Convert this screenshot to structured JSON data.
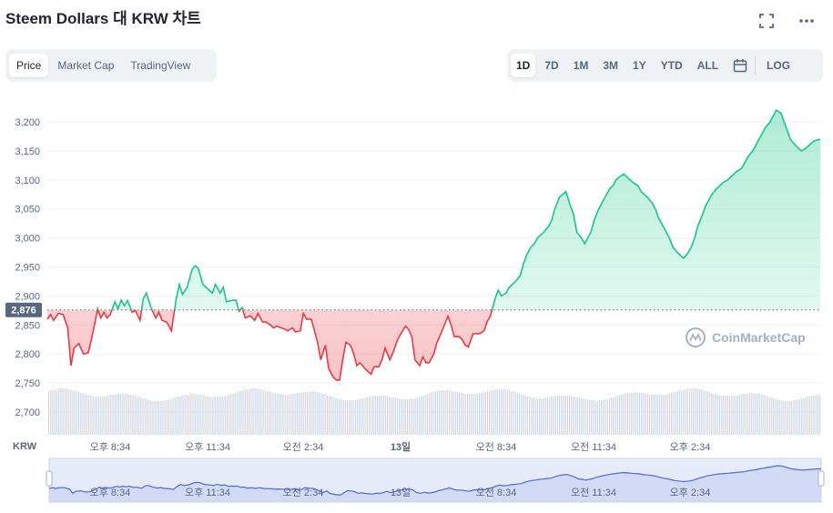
{
  "header": {
    "title": "Steem Dollars 대 KRW 차트",
    "fullscreen_icon": "fullscreen-icon",
    "more_icon": "more-icon"
  },
  "view_tabs": [
    {
      "label": "Price",
      "active": true
    },
    {
      "label": "Market Cap",
      "active": false
    },
    {
      "label": "TradingView",
      "active": false
    }
  ],
  "range_tabs": [
    {
      "label": "1D",
      "active": true
    },
    {
      "label": "7D",
      "active": false
    },
    {
      "label": "1M",
      "active": false
    },
    {
      "label": "3M",
      "active": false
    },
    {
      "label": "1Y",
      "active": false
    },
    {
      "label": "YTD",
      "active": false
    },
    {
      "label": "ALL",
      "active": false
    }
  ],
  "calendar_icon": "calendar-icon",
  "log_label": "LOG",
  "watermark": "CoinMarketCap",
  "colors": {
    "up": "#16c784",
    "down": "#ea3943",
    "nav": "#4a6cd4",
    "grid": "#eff2f5",
    "text": "#58667e"
  },
  "chart_data": {
    "type": "line",
    "currency_label": "KRW",
    "reference_value": 2876,
    "reference_label": "2,876",
    "ylim": [
      2680,
      3230
    ],
    "yticks": [
      2700,
      2750,
      2800,
      2850,
      2900,
      2950,
      3000,
      3050,
      3100,
      3150,
      3200
    ],
    "ytick_labels": [
      "2,700",
      "2,750",
      "2,800",
      "2,850",
      "2,900",
      "2,950",
      "3,000",
      "3,050",
      "3,100",
      "3,150",
      "3,200"
    ],
    "xticks": [
      "오후 8:34",
      "오후 11:34",
      "오전 2:34",
      "13일",
      "오전 8:34",
      "오전 11:34",
      "오후 2:34"
    ],
    "x_hours": [
      0,
      3,
      6,
      9,
      12,
      15,
      18,
      21,
      24
    ],
    "series": [
      {
        "values": [
          [
            0,
            2860
          ],
          [
            0.2,
            2868
          ],
          [
            0.4,
            2858
          ],
          [
            0.7,
            2870
          ],
          [
            1.0,
            2868
          ],
          [
            1.3,
            2845
          ],
          [
            1.5,
            2780
          ],
          [
            1.7,
            2810
          ],
          [
            2.0,
            2818
          ],
          [
            2.3,
            2800
          ],
          [
            2.6,
            2802
          ],
          [
            2.8,
            2825
          ],
          [
            3.0,
            2850
          ],
          [
            3.2,
            2878
          ],
          [
            3.4,
            2862
          ],
          [
            3.6,
            2872
          ],
          [
            3.8,
            2862
          ],
          [
            4.0,
            2868
          ],
          [
            4.3,
            2890
          ],
          [
            4.5,
            2878
          ],
          [
            4.7,
            2893
          ],
          [
            4.9,
            2883
          ],
          [
            5.1,
            2892
          ],
          [
            5.4,
            2872
          ],
          [
            5.6,
            2875
          ],
          [
            5.9,
            2858
          ],
          [
            6.1,
            2895
          ],
          [
            6.3,
            2905
          ],
          [
            6.6,
            2880
          ],
          [
            6.9,
            2862
          ],
          [
            7.1,
            2872
          ],
          [
            7.3,
            2858
          ],
          [
            7.6,
            2855
          ],
          [
            7.9,
            2840
          ],
          [
            8.2,
            2895
          ],
          [
            8.4,
            2920
          ],
          [
            8.6,
            2903
          ],
          [
            8.9,
            2915
          ],
          [
            9.2,
            2945
          ],
          [
            9.4,
            2952
          ],
          [
            9.6,
            2948
          ],
          [
            9.9,
            2920
          ],
          [
            10.1,
            2915
          ],
          [
            10.3,
            2910
          ],
          [
            10.5,
            2905
          ],
          [
            10.7,
            2920
          ],
          [
            11.0,
            2905
          ],
          [
            11.2,
            2915
          ],
          [
            11.4,
            2890
          ],
          [
            11.7,
            2892
          ],
          [
            12.0,
            2893
          ],
          [
            12.2,
            2874
          ],
          [
            12.4,
            2880
          ],
          [
            12.6,
            2862
          ],
          [
            12.9,
            2866
          ],
          [
            13.2,
            2858
          ],
          [
            13.4,
            2870
          ],
          [
            13.7,
            2855
          ],
          [
            13.9,
            2855
          ],
          [
            14.2,
            2850
          ],
          [
            14.4,
            2845
          ],
          [
            14.6,
            2848
          ],
          [
            14.9,
            2845
          ],
          [
            15.1,
            2843
          ],
          [
            15.3,
            2840
          ],
          [
            15.6,
            2845
          ],
          [
            15.8,
            2838
          ],
          [
            16.1,
            2840
          ],
          [
            16.3,
            2870
          ],
          [
            16.5,
            2860
          ],
          [
            16.8,
            2860
          ],
          [
            17.0,
            2840
          ],
          [
            17.2,
            2820
          ],
          [
            17.4,
            2790
          ],
          [
            17.7,
            2815
          ],
          [
            17.9,
            2775
          ],
          [
            18.2,
            2760
          ],
          [
            18.4,
            2755
          ],
          [
            18.6,
            2755
          ],
          [
            18.8,
            2790
          ],
          [
            19.0,
            2820
          ],
          [
            19.3,
            2815
          ],
          [
            19.5,
            2800
          ],
          [
            19.7,
            2780
          ],
          [
            19.9,
            2785
          ],
          [
            20.2,
            2775
          ],
          [
            20.4,
            2770
          ],
          [
            20.6,
            2765
          ],
          [
            20.8,
            2778
          ],
          [
            21.1,
            2778
          ],
          [
            21.3,
            2790
          ],
          [
            21.5,
            2810
          ],
          [
            21.8,
            2790
          ],
          [
            22.0,
            2802
          ],
          [
            22.3,
            2825
          ],
          [
            22.5,
            2835
          ],
          [
            22.8,
            2848
          ],
          [
            23.0,
            2842
          ],
          [
            23.2,
            2830
          ],
          [
            23.4,
            2790
          ],
          [
            23.7,
            2780
          ],
          [
            23.9,
            2795
          ],
          [
            24.1,
            2785
          ],
          [
            24.3,
            2785
          ],
          [
            24.6,
            2800
          ],
          [
            24.8,
            2820
          ],
          [
            25.0,
            2832
          ],
          [
            25.2,
            2845
          ],
          [
            25.5,
            2865
          ],
          [
            25.7,
            2850
          ],
          [
            25.9,
            2830
          ],
          [
            26.2,
            2830
          ],
          [
            26.4,
            2825
          ],
          [
            26.6,
            2815
          ],
          [
            26.8,
            2812
          ],
          [
            27.1,
            2835
          ],
          [
            27.3,
            2835
          ],
          [
            27.5,
            2835
          ],
          [
            27.8,
            2840
          ],
          [
            28.0,
            2856
          ],
          [
            28.2,
            2865
          ],
          [
            28.5,
            2895
          ],
          [
            28.7,
            2910
          ],
          [
            28.9,
            2900
          ],
          [
            29.2,
            2905
          ],
          [
            29.4,
            2915
          ],
          [
            29.6,
            2920
          ],
          [
            29.8,
            2925
          ],
          [
            30.1,
            2935
          ],
          [
            30.3,
            2955
          ],
          [
            30.5,
            2970
          ],
          [
            30.8,
            2985
          ],
          [
            31.0,
            2990
          ],
          [
            31.2,
            3000
          ],
          [
            31.4,
            3005
          ],
          [
            31.6,
            3010
          ],
          [
            31.9,
            3020
          ],
          [
            32.1,
            3030
          ],
          [
            32.3,
            3050
          ],
          [
            32.6,
            3070
          ],
          [
            32.8,
            3075
          ],
          [
            33.0,
            3080
          ],
          [
            33.3,
            3055
          ],
          [
            33.5,
            3040
          ],
          [
            33.7,
            3010
          ],
          [
            34.0,
            3000
          ],
          [
            34.2,
            2990
          ],
          [
            34.4,
            3000
          ],
          [
            34.6,
            3010
          ],
          [
            34.8,
            3030
          ],
          [
            35.1,
            3050
          ],
          [
            35.3,
            3060
          ],
          [
            35.5,
            3070
          ],
          [
            35.8,
            3085
          ],
          [
            36.0,
            3090
          ],
          [
            36.2,
            3100
          ],
          [
            36.4,
            3105
          ],
          [
            36.7,
            3110
          ],
          [
            36.9,
            3105
          ],
          [
            37.1,
            3100
          ],
          [
            37.3,
            3095
          ],
          [
            37.6,
            3090
          ],
          [
            37.8,
            3080
          ],
          [
            38.0,
            3075
          ],
          [
            38.2,
            3070
          ],
          [
            38.5,
            3060
          ],
          [
            38.7,
            3050
          ],
          [
            38.9,
            3035
          ],
          [
            39.2,
            3020
          ],
          [
            39.4,
            3010
          ],
          [
            39.6,
            3000
          ],
          [
            39.8,
            2985
          ],
          [
            40.1,
            2975
          ],
          [
            40.3,
            2970
          ],
          [
            40.5,
            2965
          ],
          [
            40.8,
            2975
          ],
          [
            41.0,
            2985
          ],
          [
            41.2,
            3000
          ],
          [
            41.4,
            3020
          ],
          [
            41.7,
            3040
          ],
          [
            41.9,
            3055
          ],
          [
            42.1,
            3065
          ],
          [
            42.3,
            3075
          ],
          [
            42.6,
            3085
          ],
          [
            42.8,
            3090
          ],
          [
            43.0,
            3095
          ],
          [
            43.3,
            3100
          ],
          [
            43.5,
            3105
          ],
          [
            43.7,
            3110
          ],
          [
            43.9,
            3115
          ],
          [
            44.2,
            3120
          ],
          [
            44.4,
            3130
          ],
          [
            44.6,
            3140
          ],
          [
            44.9,
            3150
          ],
          [
            45.1,
            3160
          ],
          [
            45.3,
            3170
          ],
          [
            45.5,
            3180
          ],
          [
            45.7,
            3190
          ],
          [
            46.0,
            3200
          ],
          [
            46.2,
            3210
          ],
          [
            46.4,
            3220
          ],
          [
            46.7,
            3215
          ],
          [
            46.9,
            3200
          ],
          [
            47.1,
            3185
          ],
          [
            47.3,
            3170
          ],
          [
            47.6,
            3160
          ],
          [
            47.8,
            3155
          ],
          [
            48.0,
            3150
          ],
          [
            48.3,
            3155
          ],
          [
            48.5,
            3160
          ],
          [
            48.7,
            3165
          ],
          [
            48.9,
            3168
          ],
          [
            49.2,
            3170
          ]
        ]
      }
    ]
  }
}
